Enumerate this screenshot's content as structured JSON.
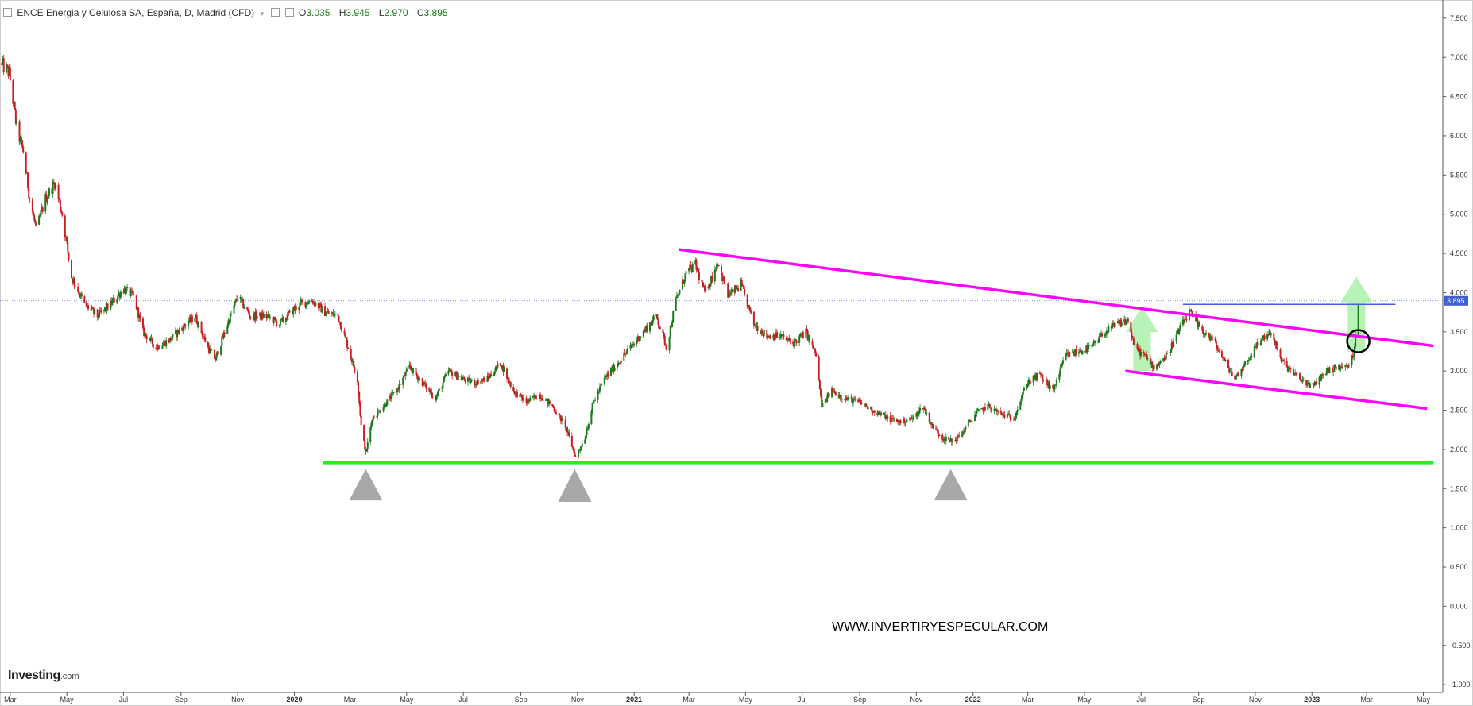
{
  "header": {
    "instrument": "ENCE Energia y Celulosa SA, España, D, Madrid (CFD)",
    "open_label": "O",
    "open": "3.035",
    "high_label": "H",
    "high": "3.945",
    "low_label": "L",
    "low": "2.970",
    "close_label": "C",
    "close": "3.895"
  },
  "logo": {
    "main": "Investing",
    "suffix": ".com"
  },
  "watermark": "WWW.INVERTIRYESPECULAR.COM",
  "chart_data": {
    "type": "candlestick",
    "ylim": [
      -1.1,
      7.65
    ],
    "y_ticks": [
      7.5,
      7.0,
      6.5,
      6.0,
      5.5,
      5.0,
      4.5,
      4.0,
      3.5,
      3.0,
      2.5,
      2.0,
      1.5,
      1.0,
      0.5,
      0.0,
      -0.5,
      -1.0
    ],
    "y_tick_labels": [
      "7.500",
      "7.000",
      "6.500",
      "6.000",
      "5.500",
      "5.000",
      "4.500",
      "4.000",
      "3.500",
      "3.000",
      "2.500",
      "2.000",
      "1.500",
      "1.000",
      "0.500",
      "0.000",
      "-0.500",
      "-1.000"
    ],
    "x_range": [
      "2019-02-18",
      "2023-05-22"
    ],
    "x_ticks": [
      {
        "date": "2019-03-01",
        "label": "Mar"
      },
      {
        "date": "2019-05-01",
        "label": "May"
      },
      {
        "date": "2019-07-01",
        "label": "Jul"
      },
      {
        "date": "2019-09-01",
        "label": "Sep"
      },
      {
        "date": "2019-11-01",
        "label": "Nov"
      },
      {
        "date": "2020-01-01",
        "label": "2020"
      },
      {
        "date": "2020-03-01",
        "label": "Mar"
      },
      {
        "date": "2020-05-01",
        "label": "May"
      },
      {
        "date": "2020-07-01",
        "label": "Jul"
      },
      {
        "date": "2020-09-01",
        "label": "Sep"
      },
      {
        "date": "2020-11-01",
        "label": "Nov"
      },
      {
        "date": "2021-01-01",
        "label": "2021"
      },
      {
        "date": "2021-03-01",
        "label": "Mar"
      },
      {
        "date": "2021-05-01",
        "label": "May"
      },
      {
        "date": "2021-07-01",
        "label": "Jul"
      },
      {
        "date": "2021-09-01",
        "label": "Sep"
      },
      {
        "date": "2021-11-01",
        "label": "Nov"
      },
      {
        "date": "2022-01-01",
        "label": "2022"
      },
      {
        "date": "2022-03-01",
        "label": "Mar"
      },
      {
        "date": "2022-05-01",
        "label": "May"
      },
      {
        "date": "2022-07-01",
        "label": "Jul"
      },
      {
        "date": "2022-09-01",
        "label": "Sep"
      },
      {
        "date": "2022-11-01",
        "label": "Nov"
      },
      {
        "date": "2023-01-01",
        "label": "2023"
      },
      {
        "date": "2023-03-01",
        "label": "Mar"
      },
      {
        "date": "2023-05-01",
        "label": "May"
      }
    ],
    "price_path": [
      [
        "2019-02-20",
        6.9
      ],
      [
        "2019-02-28",
        6.8
      ],
      [
        "2019-03-08",
        6.1
      ],
      [
        "2019-03-15",
        5.8
      ],
      [
        "2019-03-22",
        5.2
      ],
      [
        "2019-03-29",
        4.8
      ],
      [
        "2019-04-08",
        5.2
      ],
      [
        "2019-04-18",
        5.4
      ],
      [
        "2019-04-26",
        5.0
      ],
      [
        "2019-05-06",
        4.2
      ],
      [
        "2019-05-20",
        3.85
      ],
      [
        "2019-06-03",
        3.7
      ],
      [
        "2019-06-17",
        3.85
      ],
      [
        "2019-07-01",
        4.05
      ],
      [
        "2019-07-12",
        3.95
      ],
      [
        "2019-07-22",
        3.5
      ],
      [
        "2019-08-05",
        3.3
      ],
      [
        "2019-08-20",
        3.4
      ],
      [
        "2019-09-02",
        3.55
      ],
      [
        "2019-09-16",
        3.7
      ],
      [
        "2019-09-30",
        3.3
      ],
      [
        "2019-10-08",
        3.15
      ],
      [
        "2019-10-21",
        3.6
      ],
      [
        "2019-11-01",
        3.95
      ],
      [
        "2019-11-15",
        3.7
      ],
      [
        "2019-12-02",
        3.7
      ],
      [
        "2019-12-16",
        3.6
      ],
      [
        "2020-01-06",
        3.85
      ],
      [
        "2020-01-20",
        3.9
      ],
      [
        "2020-02-03",
        3.75
      ],
      [
        "2020-02-17",
        3.7
      ],
      [
        "2020-02-28",
        3.3
      ],
      [
        "2020-03-09",
        2.9
      ],
      [
        "2020-03-13",
        2.3
      ],
      [
        "2020-03-18",
        1.95
      ],
      [
        "2020-03-25",
        2.4
      ],
      [
        "2020-04-06",
        2.55
      ],
      [
        "2020-04-20",
        2.75
      ],
      [
        "2020-05-04",
        3.05
      ],
      [
        "2020-05-18",
        2.85
      ],
      [
        "2020-06-01",
        2.65
      ],
      [
        "2020-06-15",
        3.0
      ],
      [
        "2020-06-29",
        2.9
      ],
      [
        "2020-07-13",
        2.85
      ],
      [
        "2020-07-27",
        2.9
      ],
      [
        "2020-08-10",
        3.1
      ],
      [
        "2020-08-24",
        2.75
      ],
      [
        "2020-09-07",
        2.6
      ],
      [
        "2020-09-21",
        2.7
      ],
      [
        "2020-10-05",
        2.55
      ],
      [
        "2020-10-19",
        2.3
      ],
      [
        "2020-10-30",
        1.9
      ],
      [
        "2020-11-09",
        2.15
      ],
      [
        "2020-11-18",
        2.6
      ],
      [
        "2020-11-30",
        2.9
      ],
      [
        "2020-12-14",
        3.1
      ],
      [
        "2020-12-28",
        3.3
      ],
      [
        "2021-01-11",
        3.5
      ],
      [
        "2021-01-25",
        3.7
      ],
      [
        "2021-02-05",
        3.3
      ],
      [
        "2021-02-15",
        3.9
      ],
      [
        "2021-02-26",
        4.25
      ],
      [
        "2021-03-08",
        4.35
      ],
      [
        "2021-03-18",
        4.0
      ],
      [
        "2021-03-26",
        4.2
      ],
      [
        "2021-04-01",
        4.4
      ],
      [
        "2021-04-12",
        3.95
      ],
      [
        "2021-04-26",
        4.1
      ],
      [
        "2021-05-10",
        3.6
      ],
      [
        "2021-05-24",
        3.45
      ],
      [
        "2021-06-07",
        3.45
      ],
      [
        "2021-06-21",
        3.35
      ],
      [
        "2021-07-05",
        3.5
      ],
      [
        "2021-07-16",
        3.2
      ],
      [
        "2021-07-22",
        2.55
      ],
      [
        "2021-08-02",
        2.75
      ],
      [
        "2021-08-16",
        2.65
      ],
      [
        "2021-09-01",
        2.6
      ],
      [
        "2021-09-15",
        2.5
      ],
      [
        "2021-10-01",
        2.4
      ],
      [
        "2021-10-15",
        2.35
      ],
      [
        "2021-10-29",
        2.4
      ],
      [
        "2021-11-08",
        2.55
      ],
      [
        "2021-11-18",
        2.3
      ],
      [
        "2021-11-29",
        2.15
      ],
      [
        "2021-12-10",
        2.1
      ],
      [
        "2021-12-20",
        2.2
      ],
      [
        "2022-01-03",
        2.45
      ],
      [
        "2022-01-17",
        2.55
      ],
      [
        "2022-01-31",
        2.45
      ],
      [
        "2022-02-14",
        2.4
      ],
      [
        "2022-02-28",
        2.85
      ],
      [
        "2022-03-14",
        2.95
      ],
      [
        "2022-03-28",
        2.75
      ],
      [
        "2022-04-11",
        3.2
      ],
      [
        "2022-04-25",
        3.25
      ],
      [
        "2022-05-09",
        3.3
      ],
      [
        "2022-05-23",
        3.5
      ],
      [
        "2022-06-06",
        3.6
      ],
      [
        "2022-06-17",
        3.65
      ],
      [
        "2022-06-24",
        3.3
      ],
      [
        "2022-07-04",
        3.2
      ],
      [
        "2022-07-15",
        3.05
      ],
      [
        "2022-07-29",
        3.2
      ],
      [
        "2022-08-10",
        3.5
      ],
      [
        "2022-08-22",
        3.75
      ],
      [
        "2022-09-02",
        3.55
      ],
      [
        "2022-09-16",
        3.4
      ],
      [
        "2022-09-30",
        3.1
      ],
      [
        "2022-10-10",
        2.9
      ],
      [
        "2022-10-24",
        3.15
      ],
      [
        "2022-11-07",
        3.4
      ],
      [
        "2022-11-18",
        3.5
      ],
      [
        "2022-11-28",
        3.15
      ],
      [
        "2022-12-09",
        3.0
      ],
      [
        "2022-12-19",
        2.9
      ],
      [
        "2023-01-02",
        2.8
      ],
      [
        "2023-01-16",
        3.0
      ],
      [
        "2023-01-30",
        3.05
      ],
      [
        "2023-02-08",
        3.05
      ],
      [
        "2023-02-15",
        3.2
      ],
      [
        "2023-02-20",
        3.895
      ]
    ],
    "last_price": 3.895,
    "last_price_label": "3.895",
    "annotations": {
      "support_line": {
        "color": "#22ee22",
        "y": 1.83,
        "from": "2020-02-01",
        "to": "2023-05-12"
      },
      "upper_trendline": {
        "color": "#ff00ff",
        "from": [
          "2021-02-18",
          4.55
        ],
        "to": [
          "2023-05-12",
          3.32
        ]
      },
      "lower_trendline": {
        "color": "#ff00ff",
        "from": [
          "2022-06-14",
          3.0
        ],
        "to": [
          "2023-05-05",
          2.52
        ]
      },
      "resistance_line": {
        "color": "#4a5fd9",
        "y": 3.85,
        "from": "2022-08-15",
        "to": "2023-04-01"
      },
      "triangles": [
        {
          "date": "2020-03-18",
          "base": 1.35,
          "top": 1.75,
          "color": "#a8a8a8"
        },
        {
          "date": "2020-10-29",
          "base": 1.33,
          "top": 1.75,
          "color": "#a8a8a8"
        },
        {
          "date": "2021-12-08",
          "base": 1.35,
          "top": 1.75,
          "color": "#a8a8a8"
        }
      ],
      "green_arrows": [
        {
          "date": "2022-07-02",
          "base": 3.0,
          "top": 3.82,
          "color": "#aaf0aa"
        },
        {
          "date": "2023-02-18",
          "base": 3.25,
          "top": 4.2,
          "color": "#aaf0aa"
        }
      ],
      "circle": {
        "date": "2023-02-20",
        "y": 3.38,
        "color": "#000000"
      }
    }
  }
}
